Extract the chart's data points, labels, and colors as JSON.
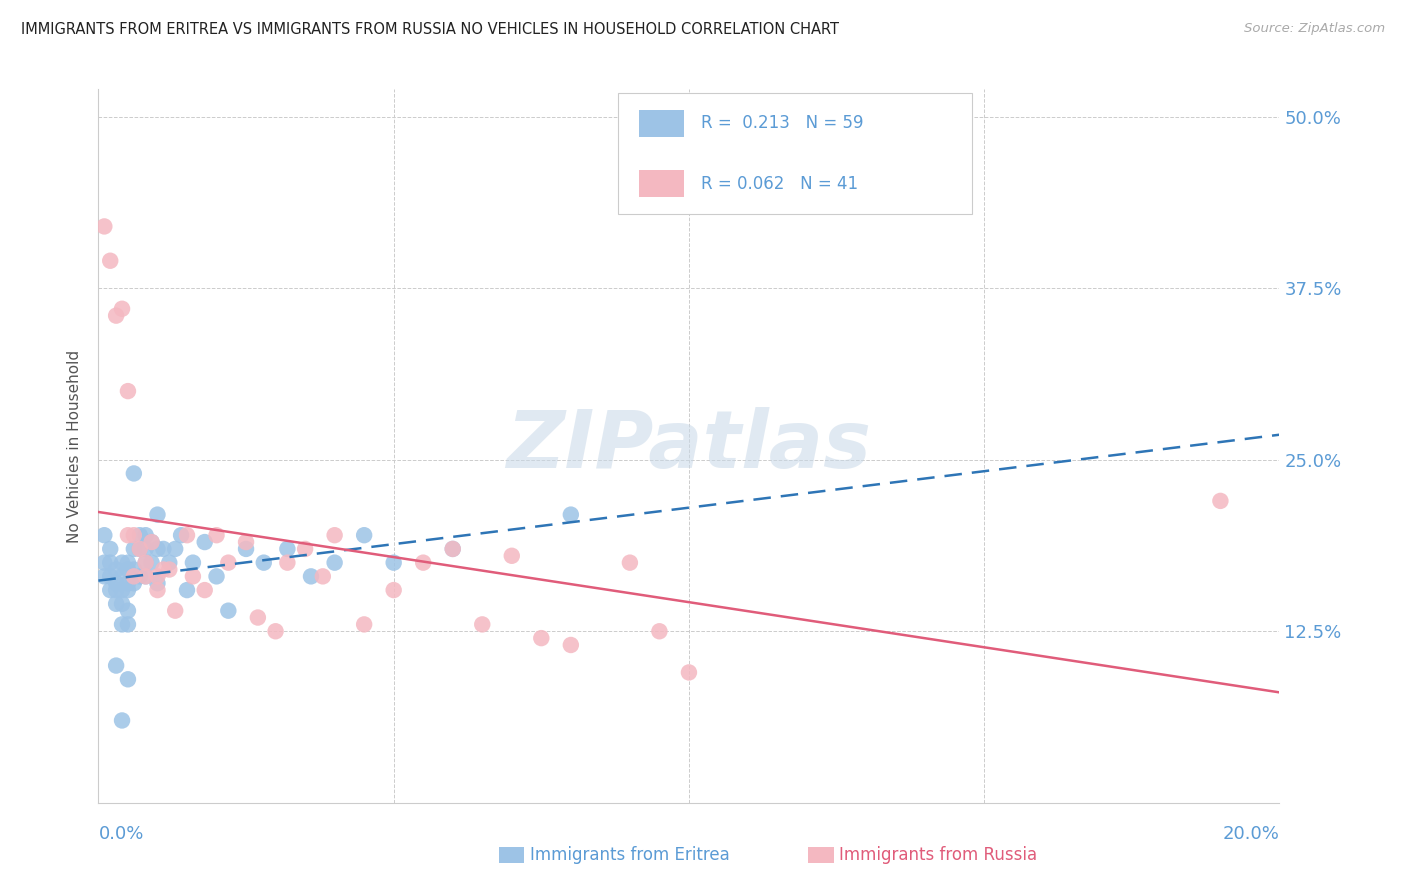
{
  "title": "IMMIGRANTS FROM ERITREA VS IMMIGRANTS FROM RUSSIA NO VEHICLES IN HOUSEHOLD CORRELATION CHART",
  "source": "Source: ZipAtlas.com",
  "ylabel": "No Vehicles in Household",
  "ytick_labels": [
    "50.0%",
    "37.5%",
    "25.0%",
    "12.5%"
  ],
  "ytick_values": [
    0.5,
    0.375,
    0.25,
    0.125
  ],
  "xlim": [
    0.0,
    0.2
  ],
  "ylim": [
    0.0,
    0.52
  ],
  "title_color": "#222222",
  "source_color": "#aaaaaa",
  "axis_tick_color": "#5b9bd5",
  "grid_color": "#cccccc",
  "legend_eritrea_label": "Immigrants from Eritrea",
  "legend_russia_label": "Immigrants from Russia",
  "R_eritrea": "0.213",
  "N_eritrea": "59",
  "R_russia": "0.062",
  "N_russia": "41",
  "eritrea_color": "#9dc3e6",
  "russia_color": "#f4b8c1",
  "eritrea_line_color": "#2e75b6",
  "russia_line_color": "#e05c7a",
  "watermark_color": "#c8d8e8",
  "eritrea_x": [
    0.001,
    0.001,
    0.001,
    0.002,
    0.002,
    0.002,
    0.002,
    0.003,
    0.003,
    0.003,
    0.003,
    0.003,
    0.004,
    0.004,
    0.004,
    0.004,
    0.004,
    0.004,
    0.005,
    0.005,
    0.005,
    0.005,
    0.005,
    0.005,
    0.005,
    0.006,
    0.006,
    0.006,
    0.006,
    0.007,
    0.007,
    0.007,
    0.008,
    0.008,
    0.008,
    0.008,
    0.009,
    0.009,
    0.01,
    0.01,
    0.01,
    0.011,
    0.012,
    0.013,
    0.014,
    0.015,
    0.016,
    0.018,
    0.02,
    0.022,
    0.025,
    0.028,
    0.032,
    0.036,
    0.04,
    0.045,
    0.05,
    0.06,
    0.08
  ],
  "eritrea_y": [
    0.195,
    0.175,
    0.165,
    0.185,
    0.175,
    0.165,
    0.155,
    0.17,
    0.16,
    0.155,
    0.145,
    0.1,
    0.175,
    0.165,
    0.155,
    0.145,
    0.13,
    0.06,
    0.175,
    0.17,
    0.16,
    0.155,
    0.14,
    0.13,
    0.09,
    0.24,
    0.185,
    0.17,
    0.16,
    0.195,
    0.185,
    0.165,
    0.195,
    0.185,
    0.175,
    0.165,
    0.19,
    0.175,
    0.21,
    0.185,
    0.16,
    0.185,
    0.175,
    0.185,
    0.195,
    0.155,
    0.175,
    0.19,
    0.165,
    0.14,
    0.185,
    0.175,
    0.185,
    0.165,
    0.175,
    0.195,
    0.175,
    0.185,
    0.21
  ],
  "russia_x": [
    0.001,
    0.002,
    0.003,
    0.004,
    0.005,
    0.005,
    0.006,
    0.006,
    0.007,
    0.008,
    0.008,
    0.009,
    0.01,
    0.01,
    0.011,
    0.012,
    0.013,
    0.015,
    0.016,
    0.018,
    0.02,
    0.022,
    0.025,
    0.027,
    0.03,
    0.032,
    0.035,
    0.038,
    0.04,
    0.045,
    0.05,
    0.055,
    0.06,
    0.065,
    0.07,
    0.075,
    0.08,
    0.09,
    0.095,
    0.1,
    0.19
  ],
  "russia_y": [
    0.42,
    0.395,
    0.355,
    0.36,
    0.3,
    0.195,
    0.195,
    0.165,
    0.185,
    0.175,
    0.165,
    0.19,
    0.165,
    0.155,
    0.17,
    0.17,
    0.14,
    0.195,
    0.165,
    0.155,
    0.195,
    0.175,
    0.19,
    0.135,
    0.125,
    0.175,
    0.185,
    0.165,
    0.195,
    0.13,
    0.155,
    0.175,
    0.185,
    0.13,
    0.18,
    0.12,
    0.115,
    0.175,
    0.125,
    0.095,
    0.22
  ]
}
